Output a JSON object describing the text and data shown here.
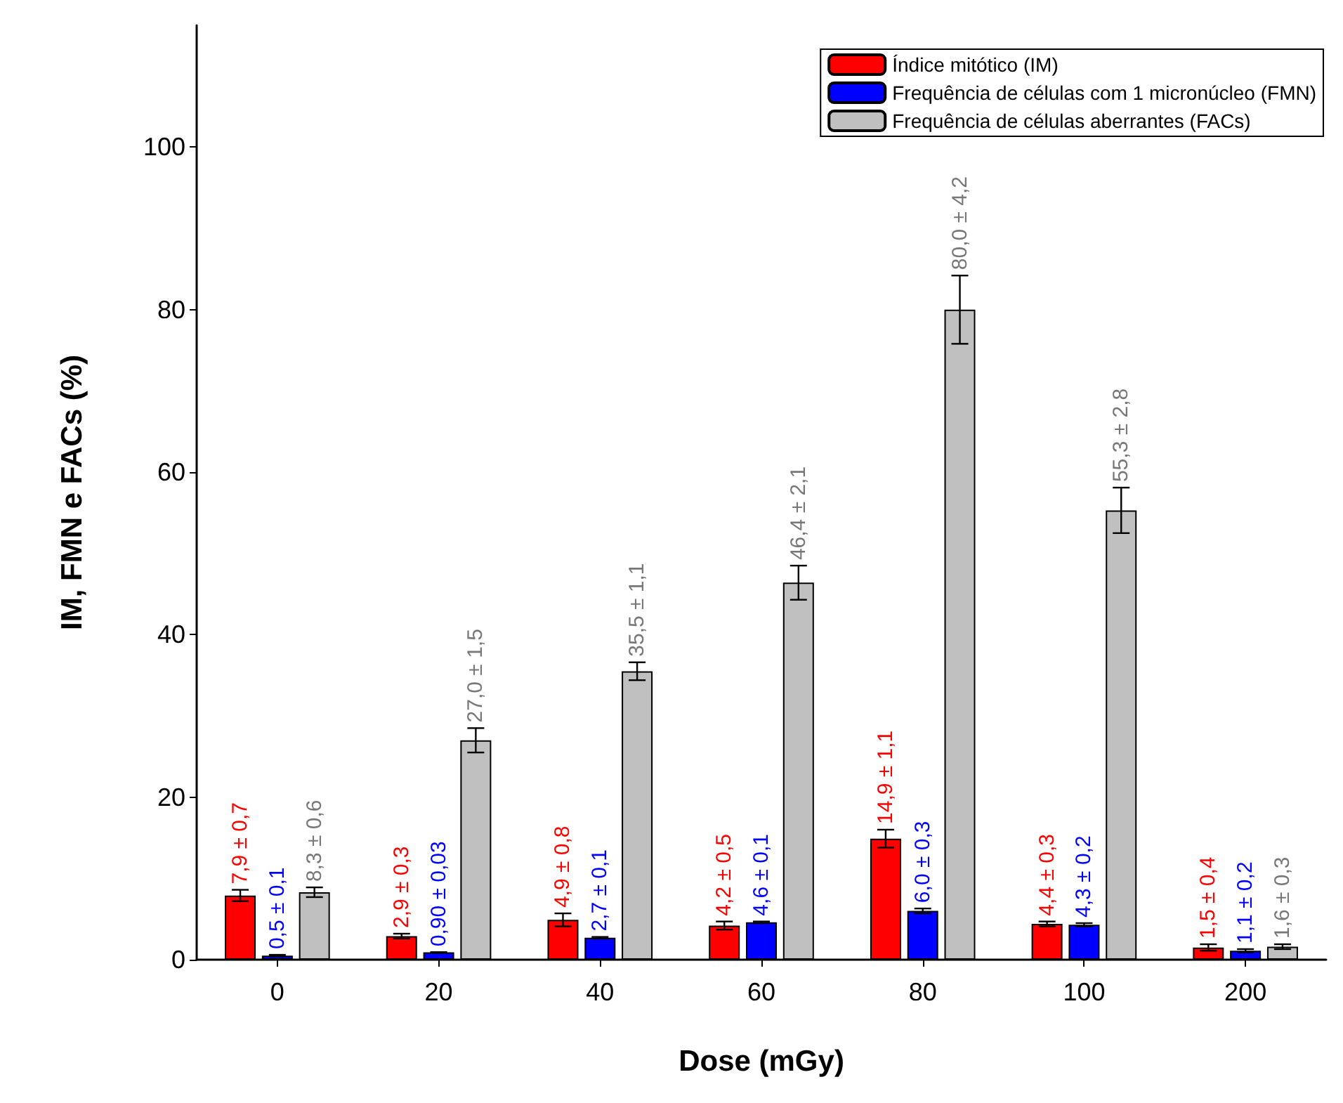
{
  "chart_data": {
    "type": "bar",
    "xlabel": "Dose (mGy)",
    "ylabel": "IM, FMN e FACs (%)",
    "categories": [
      "0",
      "20",
      "40",
      "60",
      "80",
      "100",
      "200"
    ],
    "series": [
      {
        "name": "Índice mitótico (IM)",
        "color": "#ff0000",
        "values": [
          7.9,
          2.9,
          4.9,
          4.2,
          14.9,
          4.4,
          1.5
        ],
        "errors": [
          0.7,
          0.3,
          0.8,
          0.5,
          1.1,
          0.3,
          0.4
        ],
        "value_labels": [
          "7,9 ± 0,7",
          "2,9 ± 0,3",
          "4,9 ± 0,8",
          "4,2 ± 0,5",
          "14,9 ± 1,1",
          "4,4 ± 0,3",
          "1,5 ± 0,4"
        ]
      },
      {
        "name": "Frequência de células com 1 micronúcleo (FMN)",
        "color": "#0000ff",
        "values": [
          0.5,
          0.9,
          2.7,
          4.6,
          6.0,
          4.3,
          1.1
        ],
        "errors": [
          0.1,
          0.03,
          0.1,
          0.1,
          0.3,
          0.2,
          0.2
        ],
        "value_labels": [
          "0,5 ± 0,1",
          "0,90 ± 0,03",
          "2,7 ± 0,1",
          "4,6 ± 0,1",
          "6,0 ± 0,3",
          "4,3 ± 0,2",
          "1,1 ± 0,2"
        ]
      },
      {
        "name": "Frequência de células aberrantes (FACs)",
        "color": "#c0c0c0",
        "values": [
          8.3,
          27.0,
          35.5,
          46.4,
          80.0,
          55.3,
          1.6
        ],
        "errors": [
          0.6,
          1.5,
          1.1,
          2.1,
          4.2,
          2.8,
          0.3
        ],
        "value_labels": [
          "8,3 ± 0,6",
          "27,0 ± 1,5",
          "35,5 ± 1,1",
          "46,4 ± 2,1",
          "80,0 ± 4,2",
          "55,3 ± 2,8",
          "1,6 ± 0,3"
        ]
      }
    ],
    "ylim": [
      0,
      115
    ],
    "yticks": [
      0,
      20,
      40,
      60,
      80,
      100
    ],
    "grid": false,
    "legend": "top right"
  }
}
